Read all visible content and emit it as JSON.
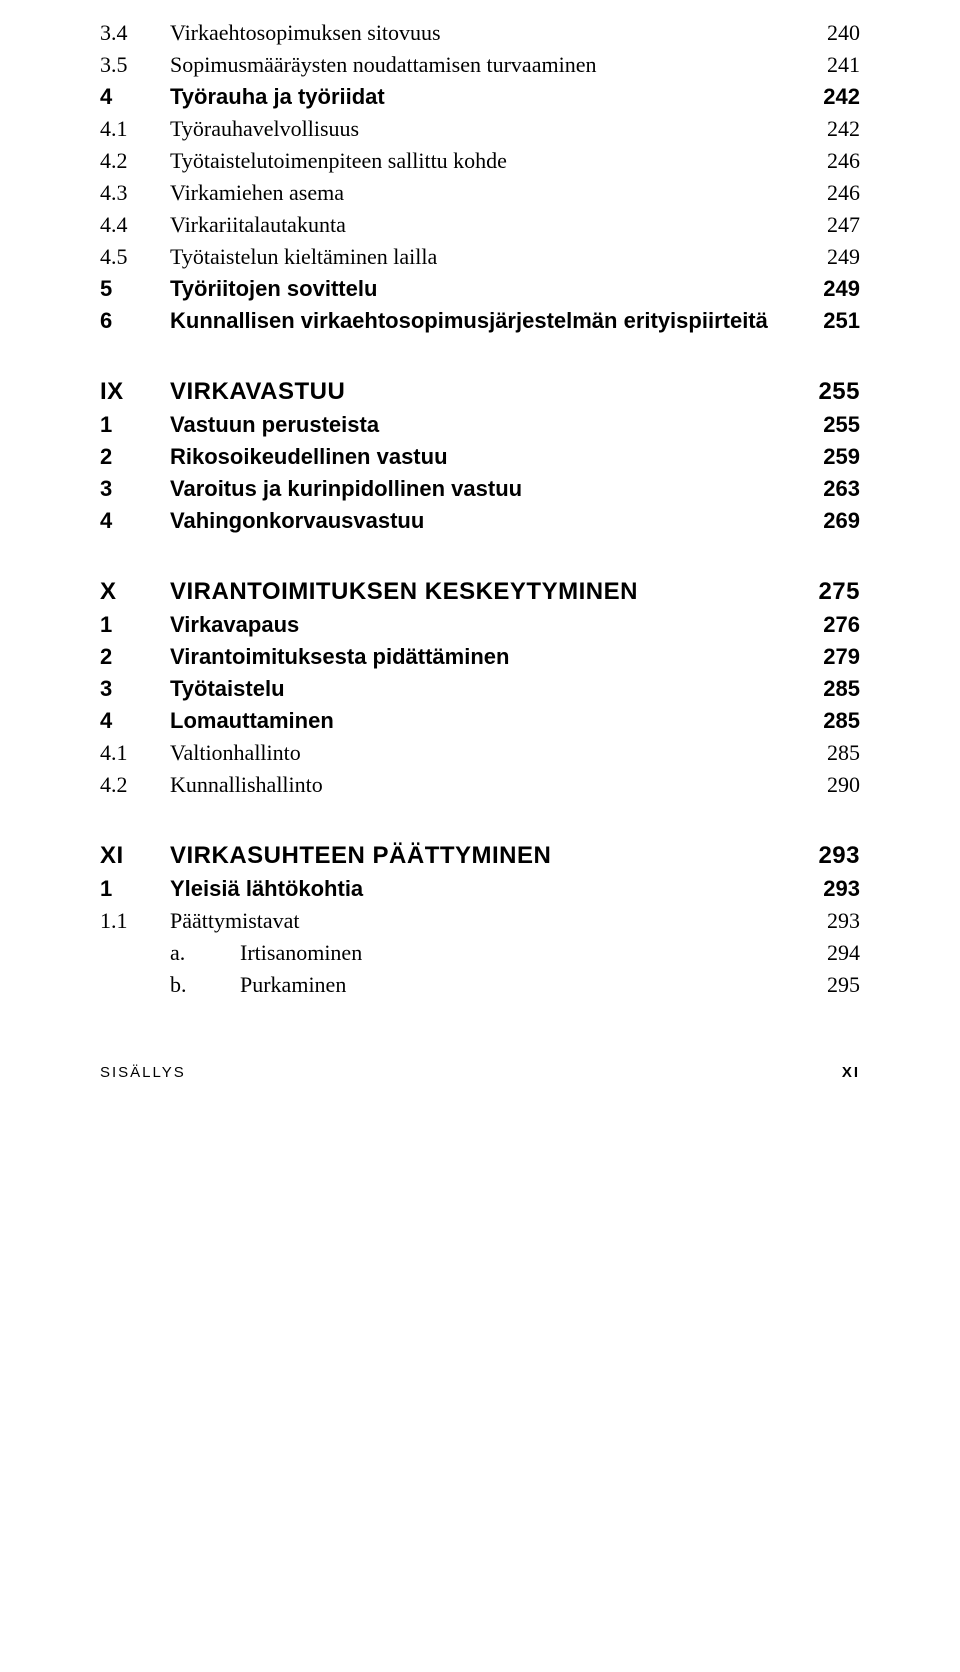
{
  "rows": [
    {
      "num": "3.4",
      "label": "Virkaehtosopimuksen sitovuus",
      "page": "240",
      "cls": "row"
    },
    {
      "num": "3.5",
      "label": "Sopimusmääräysten noudattamisen turvaaminen",
      "page": "241",
      "cls": "row"
    },
    {
      "num": "4",
      "label": "Työrauha ja työriidat",
      "page": "242",
      "cls": "row bold"
    },
    {
      "num": "4.1",
      "label": "Työrauhavelvollisuus",
      "page": "242",
      "cls": "row"
    },
    {
      "num": "4.2",
      "label": "Työtaistelutoimenpiteen sallittu kohde",
      "page": "246",
      "cls": "row"
    },
    {
      "num": "4.3",
      "label": "Virkamiehen asema",
      "page": "246",
      "cls": "row"
    },
    {
      "num": "4.4",
      "label": "Virkariitalautakunta",
      "page": "247",
      "cls": "row"
    },
    {
      "num": "4.5",
      "label": "Työtaistelun kieltäminen lailla",
      "page": "249",
      "cls": "row"
    },
    {
      "num": "5",
      "label": "Työriitojen sovittelu",
      "page": "249",
      "cls": "row bold"
    },
    {
      "num": "6",
      "label": "Kunnallisen virkaehtosopimusjärjestelmän erityispiirteitä",
      "page": "251",
      "cls": "row bold"
    },
    {
      "cls": "gap-md"
    },
    {
      "num": "IX",
      "label": "VIRKAVASTUU",
      "page": "255",
      "cls": "row chapter"
    },
    {
      "num": "1",
      "label": "Vastuun perusteista",
      "page": "255",
      "cls": "row bold"
    },
    {
      "num": "2",
      "label": "Rikosoikeudellinen vastuu",
      "page": "259",
      "cls": "row bold"
    },
    {
      "num": "3",
      "label": "Varoitus ja kurinpidollinen vastuu",
      "page": "263",
      "cls": "row bold"
    },
    {
      "num": "4",
      "label": "Vahingonkorvausvastuu",
      "page": "269",
      "cls": "row bold"
    },
    {
      "cls": "gap-md"
    },
    {
      "num": "X",
      "label": "VIRANTOIMITUKSEN KESKEYTYMINEN",
      "page": "275",
      "cls": "row chapter"
    },
    {
      "num": "1",
      "label": "Virkavapaus",
      "page": "276",
      "cls": "row bold"
    },
    {
      "num": "2",
      "label": "Virantoimituksesta pidättäminen",
      "page": "279",
      "cls": "row bold"
    },
    {
      "num": "3",
      "label": "Työtaistelu",
      "page": "285",
      "cls": "row bold"
    },
    {
      "num": "4",
      "label": "Lomauttaminen",
      "page": "285",
      "cls": "row bold"
    },
    {
      "num": "4.1",
      "label": "Valtionhallinto",
      "page": "285",
      "cls": "row"
    },
    {
      "num": "4.2",
      "label": "Kunnallishallinto",
      "page": "290",
      "cls": "row"
    },
    {
      "cls": "gap-md"
    },
    {
      "num": "XI",
      "label": "VIRKASUHTEEN PÄÄTTYMINEN",
      "page": "293",
      "cls": "row chapter"
    },
    {
      "num": "1",
      "label": "Yleisiä lähtökohtia",
      "page": "293",
      "cls": "row bold"
    },
    {
      "num": "1.1",
      "label": "Päättymistavat",
      "page": "293",
      "cls": "row"
    },
    {
      "num": "a.",
      "label": "Irtisanominen",
      "page": "294",
      "cls": "row sub"
    },
    {
      "num": "b.",
      "label": "Purkaminen",
      "page": "295",
      "cls": "row sub"
    }
  ],
  "footer": {
    "left": "SISÄLLYS",
    "right": "XI"
  }
}
